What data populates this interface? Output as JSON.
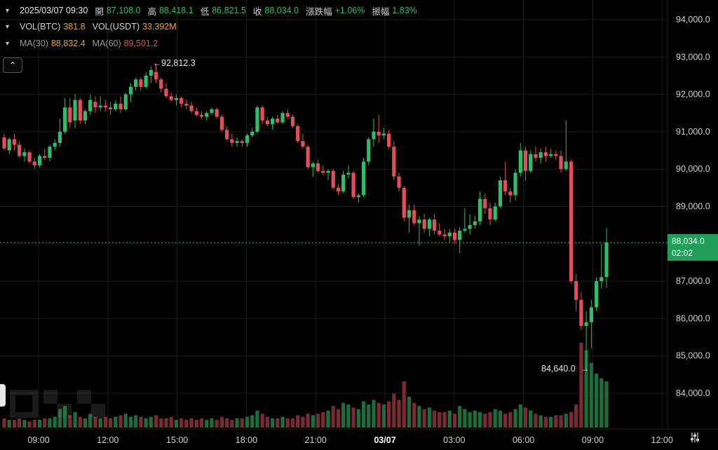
{
  "header": {
    "datetime": "2025/03/07 09:30",
    "open_label": "開",
    "open_value": "87,108.0",
    "high_label": "高",
    "high_value": "88,418.1",
    "low_label": "低",
    "low_value": "86,821.5",
    "close_label": "收",
    "close_value": "88,034.0",
    "change_label": "漲跌幅",
    "change_value": "+1.06%",
    "amplitude_label": "振幅",
    "amplitude_value": "1.83%"
  },
  "volume": {
    "btc_label": "VOL(BTC)",
    "btc_value": "381.8",
    "usdt_label": "VOL(USDT)",
    "usdt_value": "33.392M"
  },
  "ma": {
    "ma30_label": "MA(30)",
    "ma30_value": "88,832.4",
    "ma60_label": "MA(60)",
    "ma60_value": "89,501.2"
  },
  "markers": {
    "high_marker": "92,812.3",
    "low_marker": "84,640.0"
  },
  "current_price": {
    "price": "88,034.0",
    "countdown": "02:02"
  },
  "watermark": "OKX",
  "colors": {
    "up": "#2fbd69",
    "down": "#e0505a",
    "background": "#000000",
    "grid": "#1c1c1c"
  },
  "icons": {
    "collapse": "chevron-up-icon",
    "settings": "settings-icon",
    "info_toggle": "chevron-down-icon"
  },
  "chart_data": {
    "type": "candlestick",
    "y_axis_ticks": [
      "94,000.0",
      "93,000.0",
      "92,000.0",
      "91,000.0",
      "90,000.0",
      "89,000.0",
      "88,000.0",
      "87,000.0",
      "86,000.0",
      "85,000.0",
      "84,000.0"
    ],
    "x_axis_ticks": [
      "09:00",
      "12:00",
      "15:00",
      "18:00",
      "21:00",
      "03/07",
      "03:00",
      "06:00",
      "09:00",
      "12:00"
    ],
    "ylim": [
      83000,
      94400
    ],
    "candles": [
      [
        90850,
        90950,
        90500,
        90550
      ],
      [
        90500,
        90850,
        90400,
        90800
      ],
      [
        90800,
        90950,
        90500,
        90650
      ],
      [
        90650,
        90750,
        90300,
        90350
      ],
      [
        90350,
        90550,
        90200,
        90450
      ],
      [
        90450,
        90500,
        90150,
        90200
      ],
      [
        90200,
        90300,
        90000,
        90100
      ],
      [
        90100,
        90400,
        90050,
        90350
      ],
      [
        90350,
        90550,
        90250,
        90300
      ],
      [
        90300,
        90650,
        90200,
        90600
      ],
      [
        90600,
        90800,
        90500,
        90700
      ],
      [
        90700,
        91350,
        90600,
        91000
      ],
      [
        91000,
        91900,
        90950,
        91650
      ],
      [
        91650,
        91900,
        91100,
        91250
      ],
      [
        91300,
        92000,
        91100,
        91850
      ],
      [
        91850,
        91900,
        91200,
        91300
      ],
      [
        91300,
        91600,
        91200,
        91550
      ],
      [
        91550,
        92000,
        91450,
        91850
      ],
      [
        91800,
        91950,
        91500,
        91650
      ],
      [
        91650,
        91950,
        91550,
        91700
      ],
      [
        91700,
        91850,
        91550,
        91650
      ],
      [
        91650,
        91800,
        91450,
        91600
      ],
      [
        91600,
        91850,
        91550,
        91750
      ],
      [
        91750,
        91950,
        91500,
        91600
      ],
      [
        91600,
        92050,
        91550,
        92000
      ],
      [
        92000,
        92300,
        91800,
        92200
      ],
      [
        92200,
        92450,
        92100,
        92400
      ],
      [
        92400,
        92450,
        92100,
        92200
      ],
      [
        92200,
        92600,
        92150,
        92500
      ],
      [
        92500,
        92750,
        92300,
        92650
      ],
      [
        92600,
        92812,
        92300,
        92400
      ],
      [
        92400,
        92450,
        92050,
        92150
      ],
      [
        92150,
        92300,
        91900,
        91950
      ],
      [
        91950,
        92050,
        91800,
        91850
      ],
      [
        91850,
        92000,
        91700,
        91900
      ],
      [
        91900,
        91950,
        91650,
        91750
      ],
      [
        91750,
        91850,
        91600,
        91700
      ],
      [
        91700,
        91800,
        91500,
        91550
      ],
      [
        91550,
        91650,
        91400,
        91450
      ],
      [
        91450,
        91550,
        91350,
        91400
      ],
      [
        91400,
        91550,
        91300,
        91500
      ],
      [
        91500,
        91650,
        91450,
        91600
      ],
      [
        91600,
        91650,
        91350,
        91400
      ],
      [
        91400,
        91450,
        91000,
        91050
      ],
      [
        91050,
        91150,
        90750,
        90800
      ],
      [
        90800,
        90950,
        90600,
        90700
      ],
      [
        90700,
        90850,
        90600,
        90750
      ],
      [
        90750,
        90800,
        90600,
        90700
      ],
      [
        90700,
        90950,
        90600,
        90900
      ],
      [
        90900,
        91100,
        90850,
        91000
      ],
      [
        91000,
        91700,
        90950,
        91650
      ],
      [
        91650,
        91700,
        91200,
        91300
      ],
      [
        91300,
        91400,
        91150,
        91200
      ],
      [
        91200,
        91400,
        91050,
        91350
      ],
      [
        91350,
        91450,
        91200,
        91250
      ],
      [
        91250,
        91550,
        91200,
        91500
      ],
      [
        91500,
        91600,
        91350,
        91400
      ],
      [
        91400,
        91450,
        91100,
        91150
      ],
      [
        91150,
        91200,
        90700,
        90750
      ],
      [
        90750,
        90950,
        90550,
        90600
      ],
      [
        90600,
        90650,
        90000,
        90050
      ],
      [
        90050,
        90200,
        89800,
        90150
      ],
      [
        90150,
        90250,
        89900,
        89950
      ],
      [
        89950,
        90100,
        89850,
        89900
      ],
      [
        89900,
        90000,
        89700,
        89950
      ],
      [
        89950,
        90000,
        89450,
        89500
      ],
      [
        89500,
        89600,
        89300,
        89400
      ],
      [
        89400,
        89950,
        89350,
        89850
      ],
      [
        89850,
        90100,
        89750,
        89900
      ],
      [
        89900,
        89950,
        89200,
        89250
      ],
      [
        89250,
        89350,
        89100,
        89300
      ],
      [
        89300,
        90300,
        89250,
        90200
      ],
      [
        90200,
        90850,
        90100,
        90800
      ],
      [
        90800,
        91350,
        90600,
        91000
      ],
      [
        91000,
        91450,
        90700,
        90900
      ],
      [
        90900,
        91100,
        90800,
        90950
      ],
      [
        90950,
        91050,
        90550,
        90600
      ],
      [
        90600,
        90750,
        89700,
        89800
      ],
      [
        89800,
        89900,
        89400,
        89500
      ],
      [
        89500,
        89550,
        88600,
        88700
      ],
      [
        88700,
        89050,
        88300,
        88900
      ],
      [
        88900,
        89050,
        88500,
        88550
      ],
      [
        88550,
        88750,
        87950,
        88650
      ],
      [
        88650,
        88800,
        88300,
        88400
      ],
      [
        88400,
        88700,
        88200,
        88650
      ],
      [
        88650,
        88800,
        88250,
        88350
      ],
      [
        88350,
        88550,
        88200,
        88250
      ],
      [
        88250,
        88400,
        88100,
        88200
      ],
      [
        88200,
        88400,
        88050,
        88300
      ],
      [
        88300,
        88400,
        88000,
        88100
      ],
      [
        88100,
        88450,
        87750,
        88350
      ],
      [
        88350,
        88950,
        88300,
        88400
      ],
      [
        88400,
        88800,
        88250,
        88500
      ],
      [
        88500,
        88750,
        88400,
        88600
      ],
      [
        88600,
        89400,
        88500,
        89200
      ],
      [
        89200,
        89350,
        88800,
        88950
      ],
      [
        88950,
        89100,
        88500,
        88650
      ],
      [
        88650,
        89100,
        88600,
        89000
      ],
      [
        89000,
        89800,
        88950,
        89700
      ],
      [
        89700,
        90200,
        89300,
        89400
      ],
      [
        89400,
        89500,
        89100,
        89300
      ],
      [
        89300,
        90000,
        89150,
        89900
      ],
      [
        89900,
        90700,
        89800,
        90500
      ],
      [
        90500,
        90600,
        89700,
        89950
      ],
      [
        89950,
        90500,
        89900,
        90400
      ],
      [
        90400,
        90600,
        90200,
        90300
      ],
      [
        90300,
        90550,
        90150,
        90450
      ],
      [
        90450,
        90600,
        90200,
        90350
      ],
      [
        90350,
        90550,
        90300,
        90400
      ],
      [
        90400,
        90500,
        90250,
        90350
      ],
      [
        90350,
        90500,
        89900,
        90000
      ],
      [
        90000,
        91300,
        89950,
        90200
      ],
      [
        90200,
        90250,
        86950,
        87000
      ],
      [
        87000,
        87200,
        86200,
        86500
      ],
      [
        86500,
        86700,
        85700,
        85800
      ],
      [
        85800,
        86200,
        84640,
        85900
      ],
      [
        85900,
        86500,
        85200,
        86300
      ],
      [
        86300,
        87100,
        86200,
        87000
      ],
      [
        87000,
        88000,
        86800,
        87108
      ],
      [
        87108,
        88418,
        86821,
        88034
      ]
    ],
    "volumes": [
      6,
      5,
      5,
      6,
      5,
      4,
      5,
      5,
      6,
      6,
      7,
      12,
      14,
      8,
      10,
      7,
      6,
      9,
      7,
      6,
      7,
      6,
      7,
      8,
      9,
      7,
      8,
      7,
      6,
      7,
      8,
      6,
      6,
      7,
      5,
      6,
      5,
      6,
      5,
      6,
      5,
      6,
      5,
      7,
      6,
      5,
      6,
      6,
      7,
      8,
      11,
      9,
      7,
      6,
      6,
      7,
      6,
      6,
      8,
      7,
      9,
      8,
      9,
      10,
      11,
      14,
      12,
      16,
      15,
      13,
      12,
      17,
      15,
      18,
      16,
      15,
      17,
      22,
      18,
      30,
      20,
      16,
      14,
      12,
      13,
      11,
      10,
      10,
      11,
      9,
      14,
      12,
      10,
      11,
      10,
      9,
      10,
      12,
      11,
      9,
      10,
      12,
      15,
      13,
      11,
      9,
      8,
      7,
      7,
      8,
      8,
      9,
      10,
      15,
      55,
      50,
      42,
      35,
      32,
      30,
      26
    ]
  }
}
